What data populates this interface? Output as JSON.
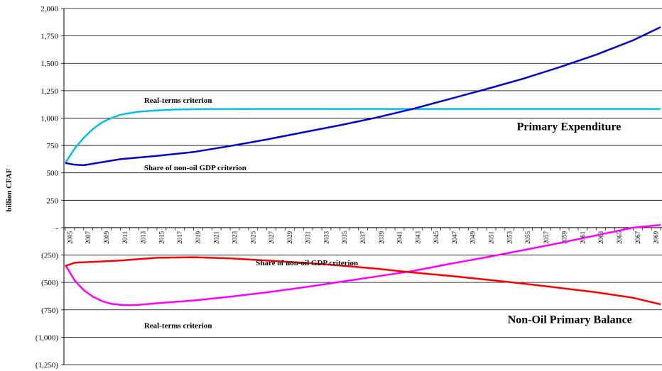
{
  "chart_data": {
    "type": "line",
    "ylabel": "billion CFAF",
    "ylim": [
      -1250,
      2000
    ],
    "y_ticks": [
      2000,
      1750,
      1500,
      1250,
      1000,
      750,
      500,
      250,
      0,
      -250,
      -500,
      -750,
      -1000,
      -1250
    ],
    "y_tick_labels": [
      "2,000",
      "1,750",
      "1,500",
      "1,250",
      "1,000",
      "750",
      "500",
      "250",
      "-",
      "(250)",
      "(500)",
      "(750)",
      "(1,000)",
      "(1,250)"
    ],
    "x_range": [
      2005,
      2070
    ],
    "x_tick_labels": [
      "2005",
      "2007",
      "2009",
      "2011",
      "2013",
      "2015",
      "2017",
      "2019",
      "2021",
      "2023",
      "2025",
      "2027",
      "2029",
      "2031",
      "2033",
      "2035",
      "2037",
      "2039",
      "2041",
      "2043",
      "2045",
      "2047",
      "2049",
      "2051",
      "2053",
      "2055",
      "2057",
      "2059",
      "2061",
      "2063",
      "2065",
      "2067",
      "2069"
    ],
    "grid": "horizontal",
    "series": [
      {
        "color": "#00BFE8",
        "x": [
          2005,
          2006,
          2007,
          2008,
          2009,
          2010,
          2011,
          2012,
          2013,
          2015,
          2017,
          2020,
          2025,
          2030,
          2040,
          2050,
          2060,
          2070
        ],
        "y": [
          590,
          720,
          820,
          900,
          960,
          1000,
          1030,
          1045,
          1058,
          1070,
          1078,
          1082,
          1083,
          1083,
          1083,
          1083,
          1083,
          1083
        ]
      },
      {
        "color": "#0000CC",
        "x": [
          2005,
          2006,
          2007,
          2011,
          2015,
          2019,
          2023,
          2027,
          2031,
          2035,
          2039,
          2043,
          2047,
          2051,
          2055,
          2059,
          2063,
          2067,
          2070
        ],
        "y": [
          590,
          575,
          570,
          625,
          655,
          690,
          745,
          805,
          870,
          935,
          1005,
          1085,
          1175,
          1265,
          1360,
          1465,
          1580,
          1710,
          1830
        ]
      },
      {
        "color": "#FF00FF",
        "x": [
          2005,
          2006,
          2007,
          2008,
          2009,
          2010,
          2011,
          2012,
          2013,
          2015,
          2019,
          2023,
          2027,
          2031,
          2035,
          2039,
          2043,
          2047,
          2051,
          2055,
          2059,
          2063,
          2067,
          2070
        ],
        "y": [
          -340,
          -480,
          -570,
          -630,
          -670,
          -695,
          -705,
          -708,
          -705,
          -690,
          -665,
          -630,
          -590,
          -545,
          -495,
          -445,
          -395,
          -330,
          -270,
          -205,
          -140,
          -70,
          0,
          25
        ]
      },
      {
        "color": "#FF0000",
        "x": [
          2005,
          2006,
          2011,
          2015,
          2019,
          2023,
          2027,
          2031,
          2035,
          2039,
          2043,
          2047,
          2051,
          2055,
          2059,
          2063,
          2067,
          2070
        ],
        "y": [
          -350,
          -320,
          -300,
          -275,
          -270,
          -280,
          -300,
          -320,
          -345,
          -375,
          -410,
          -440,
          -475,
          -510,
          -550,
          -590,
          -640,
          -700
        ]
      }
    ],
    "annotations": [
      {
        "text": "Real-terms criterion",
        "x": 2013.6,
        "y": 1140
      },
      {
        "text": "Share of non-oil GDP criterion",
        "x": 2013.6,
        "y": 525
      },
      {
        "text": "Share of non-oil GDP criterion",
        "x": 2025.8,
        "y": -345
      },
      {
        "text": "Real-terms criterion",
        "x": 2013.6,
        "y": -915
      }
    ],
    "labels": [
      {
        "text": "Primary Expenditure",
        "x": 2054.3,
        "y": 890
      },
      {
        "text": "Non-Oil Primary Balance",
        "x": 2053.3,
        "y": -870
      }
    ]
  }
}
